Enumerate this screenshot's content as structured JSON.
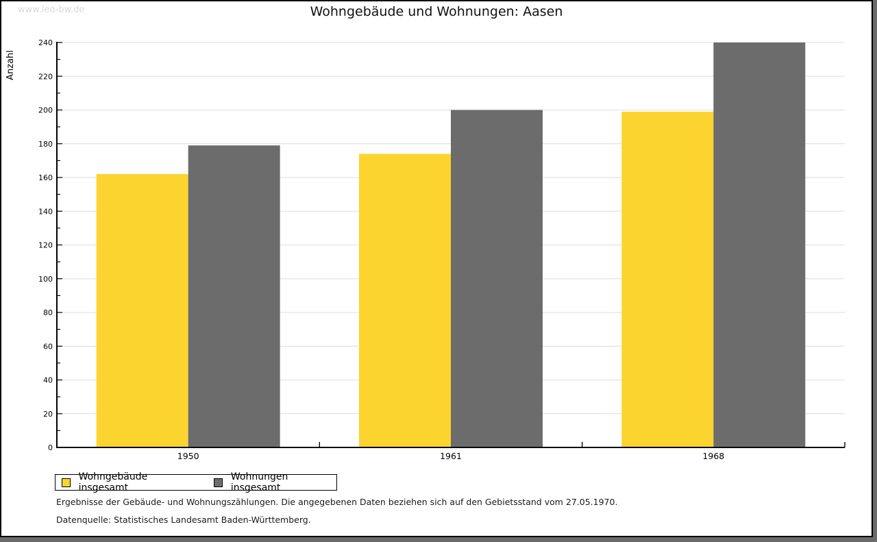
{
  "window": {
    "watermark": "www.leo-bw.de"
  },
  "chart_data": {
    "type": "bar",
    "title": "Wohngebäude und Wohnungen: Aasen",
    "ylabel": "Anzahl",
    "xlabel": "",
    "categories": [
      "1950",
      "1961",
      "1968"
    ],
    "series": [
      {
        "name": "Wohngebäude insgesamt",
        "color": "#FCD42F",
        "values": [
          162,
          174,
          199
        ]
      },
      {
        "name": "Wohnungen insgesamt",
        "color": "#6C6C6C",
        "values": [
          179,
          200,
          240
        ]
      }
    ],
    "ylim": [
      0,
      240
    ],
    "y_major_step": 20,
    "y_minor_step": 10,
    "grid": true,
    "grid_color": "#e3e3e3",
    "axis_color": "#000000",
    "legend_position": "bottom-left"
  },
  "footer": {
    "line1": "Ergebnisse der Gebäude- und Wohnungszählungen. Die angegebenen Daten beziehen sich auf den Gebietsstand vom 27.05.1970.",
    "line2": "Datenquelle: Statistisches Landesamt Baden-Württemberg."
  }
}
